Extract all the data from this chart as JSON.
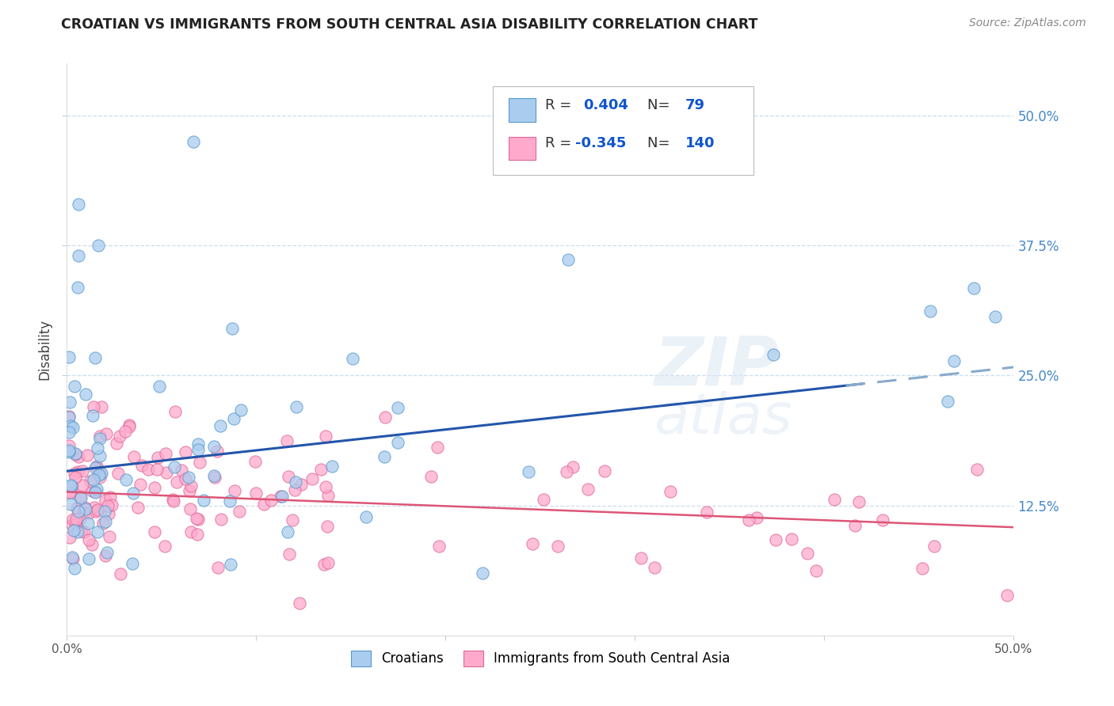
{
  "title": "CROATIAN VS IMMIGRANTS FROM SOUTH CENTRAL ASIA DISABILITY CORRELATION CHART",
  "source": "Source: ZipAtlas.com",
  "ylabel": "Disability",
  "y_tick_values": [
    0.125,
    0.25,
    0.375,
    0.5
  ],
  "y_tick_labels": [
    "12.5%",
    "25.0%",
    "37.5%",
    "50.0%"
  ],
  "xlim": [
    0.0,
    0.5
  ],
  "ylim": [
    0.0,
    0.55
  ],
  "x_tick_values": [
    0.0,
    0.1,
    0.2,
    0.3,
    0.4,
    0.5
  ],
  "legend_r_croatian": "0.404",
  "legend_n_croatian": "79",
  "legend_r_immigrant": "-0.345",
  "legend_n_immigrant": "140",
  "blue_face": "#aaccee",
  "blue_edge": "#5599cc",
  "pink_face": "#ffaacc",
  "pink_edge": "#dd6699",
  "line_blue_solid": "#2255aa",
  "line_blue_dash": "#88aacc",
  "line_pink": "#dd5577",
  "watermark_color": "#dde8f0",
  "grid_color": "#ccddee",
  "title_color": "#222222",
  "source_color": "#888888",
  "ylabel_color": "#444444",
  "ytick_color": "#4488cc",
  "legend_box_color": "#eeeeee",
  "legend_box_edge": "#cccccc",
  "cro_line_intercept": 0.158,
  "cro_line_slope": 0.2,
  "cro_line_solid_end": 0.42,
  "imm_line_intercept": 0.138,
  "imm_line_slope": -0.068,
  "legend_entries": [
    "Croatians",
    "Immigrants from South Central Asia"
  ]
}
